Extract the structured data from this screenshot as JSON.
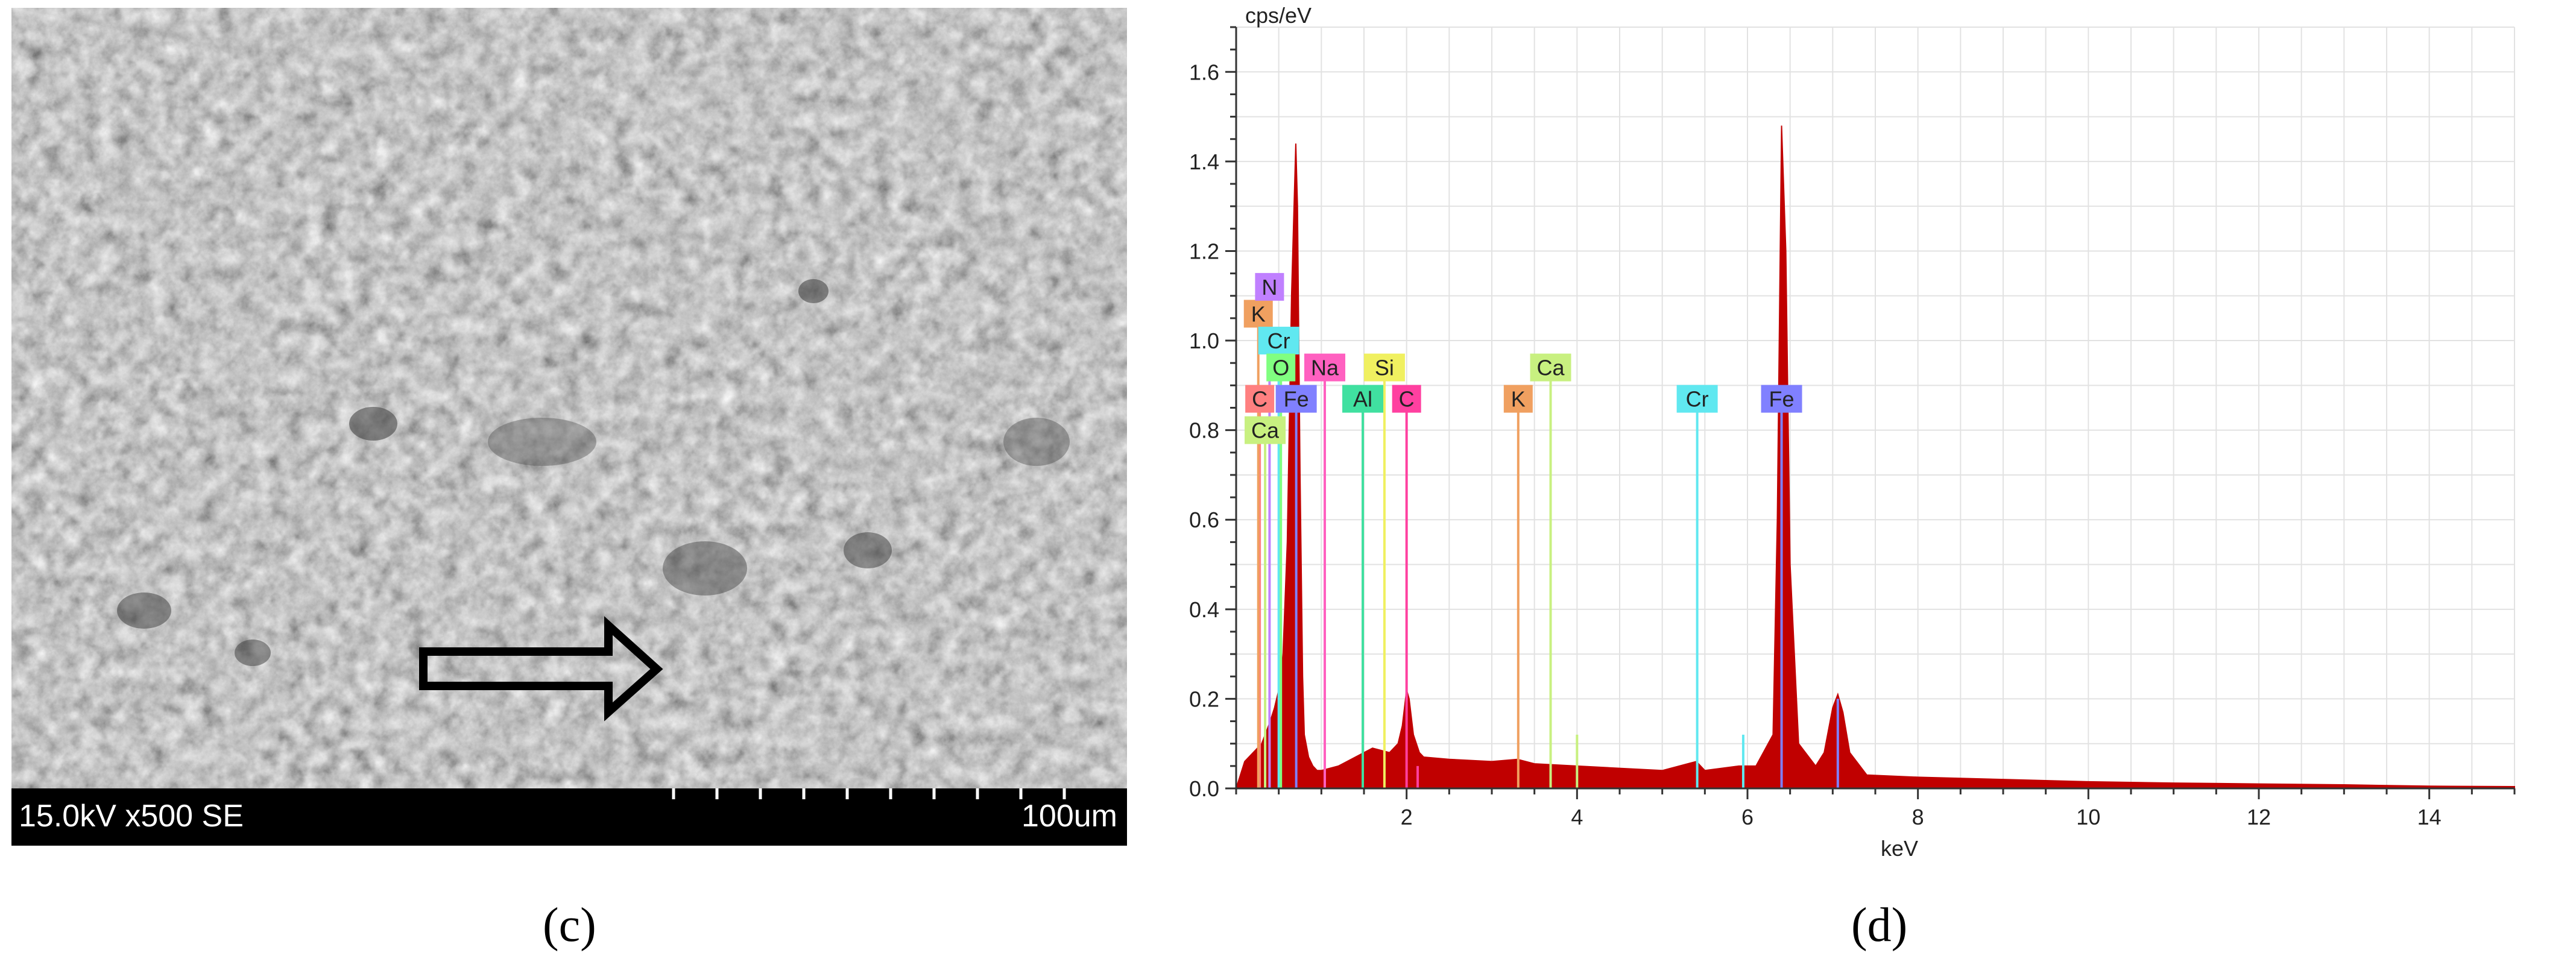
{
  "sem": {
    "params": "15.0kV x500 SE",
    "scale_label": "100um",
    "panel_label": "(c)"
  },
  "chart_data": {
    "type": "area",
    "panel_label": "(d)",
    "title": "",
    "xlabel": "keV",
    "ylabel": "cps/eV",
    "xlim": [
      0,
      15
    ],
    "ylim": [
      0,
      1.7
    ],
    "xticks": [
      2,
      4,
      6,
      8,
      10,
      12,
      14
    ],
    "yticks": [
      0.0,
      0.2,
      0.4,
      0.6,
      0.8,
      1.0,
      1.2,
      1.4,
      1.6
    ],
    "grid": true,
    "series": [
      {
        "color": "#c00000",
        "x": [
          0.0,
          0.1,
          0.2,
          0.3,
          0.4,
          0.45,
          0.5,
          0.55,
          0.6,
          0.65,
          0.7,
          0.72,
          0.75,
          0.78,
          0.8,
          0.85,
          0.9,
          0.95,
          1.0,
          1.2,
          1.4,
          1.6,
          1.8,
          1.9,
          1.95,
          2.0,
          2.03,
          2.08,
          2.15,
          2.2,
          2.5,
          3.0,
          3.3,
          3.5,
          4.0,
          4.5,
          5.0,
          5.4,
          5.5,
          5.9,
          6.1,
          6.3,
          6.35,
          6.4,
          6.45,
          6.5,
          6.6,
          6.8,
          6.9,
          7.0,
          7.06,
          7.12,
          7.2,
          7.4,
          8.0,
          9.0,
          10.0,
          11.0,
          12.0,
          13.0,
          14.0,
          15.0
        ],
        "y": [
          0.0,
          0.06,
          0.08,
          0.1,
          0.15,
          0.18,
          0.22,
          0.3,
          0.55,
          1.1,
          1.44,
          1.3,
          0.7,
          0.25,
          0.12,
          0.07,
          0.05,
          0.04,
          0.04,
          0.05,
          0.07,
          0.09,
          0.08,
          0.1,
          0.14,
          0.22,
          0.2,
          0.12,
          0.08,
          0.07,
          0.065,
          0.06,
          0.065,
          0.055,
          0.05,
          0.045,
          0.04,
          0.06,
          0.04,
          0.05,
          0.05,
          0.12,
          0.6,
          1.48,
          1.2,
          0.5,
          0.1,
          0.05,
          0.08,
          0.18,
          0.21,
          0.17,
          0.08,
          0.03,
          0.025,
          0.02,
          0.015,
          0.012,
          0.01,
          0.008,
          0.005,
          0.004
        ]
      }
    ],
    "element_lines": [
      {
        "label": "C",
        "energy": 0.277,
        "color": "#ff8080",
        "height": 0.87,
        "label_x": 0.277,
        "label_y": 0.87,
        "show_label": true
      },
      {
        "label": "Ca",
        "energy": 0.34,
        "color": "#c8f080",
        "height": 0.8,
        "label_x": 0.34,
        "label_y": 0.8,
        "show_label": true
      },
      {
        "label": "K",
        "energy": 0.26,
        "color": "#f0a060",
        "height": 1.06,
        "label_x": 0.26,
        "label_y": 1.06,
        "show_label": true
      },
      {
        "label": "N",
        "energy": 0.392,
        "color": "#c080ff",
        "height": 1.12,
        "label_x": 0.392,
        "label_y": 1.12,
        "show_label": true
      },
      {
        "label": "Cr",
        "energy": 0.5,
        "color": "#60e8f0",
        "height": 1.0,
        "label_x": 0.5,
        "label_y": 1.0,
        "show_label": true
      },
      {
        "label": "O",
        "energy": 0.525,
        "color": "#80ff80",
        "height": 0.94,
        "label_x": 0.525,
        "label_y": 0.94,
        "show_label": true
      },
      {
        "label": "Fe",
        "energy": 0.705,
        "color": "#8080ff",
        "height": 0.87,
        "label_x": 0.705,
        "label_y": 0.87,
        "show_label": true
      },
      {
        "label": "Na",
        "energy": 1.04,
        "color": "#ff60c0",
        "height": 0.94,
        "label_x": 1.04,
        "label_y": 0.94,
        "show_label": true
      },
      {
        "label": "Al",
        "energy": 1.486,
        "color": "#40e0a0",
        "height": 0.87,
        "label_x": 1.486,
        "label_y": 0.87,
        "show_label": true
      },
      {
        "label": "Si",
        "energy": 1.74,
        "color": "#f0f060",
        "height": 0.94,
        "label_x": 1.74,
        "label_y": 0.94,
        "show_label": true
      },
      {
        "label": "C",
        "energy": 2.0,
        "color": "#ff40a0",
        "height": 0.87,
        "label_x": 2.0,
        "label_y": 0.87,
        "show_label": true
      },
      {
        "label": "K",
        "energy": 3.31,
        "color": "#f0a060",
        "height": 0.87,
        "label_x": 3.31,
        "label_y": 0.87,
        "show_label": true
      },
      {
        "label": "Ca",
        "energy": 3.69,
        "color": "#c8f080",
        "height": 0.94,
        "label_x": 3.69,
        "label_y": 0.94,
        "show_label": true
      },
      {
        "label": "Cr",
        "energy": 5.41,
        "color": "#60e8f0",
        "height": 0.87,
        "label_x": 5.41,
        "label_y": 0.87,
        "show_label": true
      },
      {
        "label": "Fe",
        "energy": 6.4,
        "color": "#8080ff",
        "height": 0.87,
        "label_x": 6.4,
        "label_y": 0.87,
        "show_label": true
      },
      {
        "label": "",
        "energy": 5.95,
        "color": "#60e8f0",
        "height": 0.12,
        "show_label": false
      },
      {
        "label": "",
        "energy": 7.06,
        "color": "#8080ff",
        "height": 0.2,
        "show_label": false
      },
      {
        "label": "",
        "energy": 4.0,
        "color": "#c8f080",
        "height": 0.12,
        "show_label": false
      },
      {
        "label": "",
        "energy": 2.13,
        "color": "#ff40a0",
        "height": 0.05,
        "show_label": false
      }
    ]
  }
}
